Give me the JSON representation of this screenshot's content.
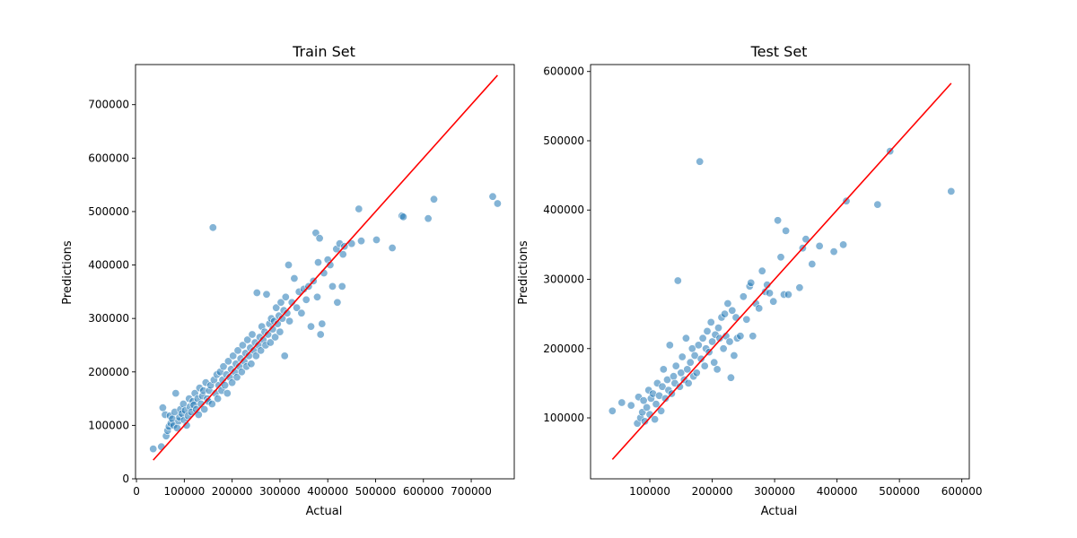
{
  "chart_data": [
    {
      "type": "scatter",
      "title": "Train Set",
      "xlabel": "Actual",
      "ylabel": "Predictions",
      "xlim": [
        -2000,
        790000
      ],
      "ylim": [
        0,
        775000
      ],
      "xticks": [
        0,
        100000,
        200000,
        300000,
        400000,
        500000,
        600000,
        700000
      ],
      "yticks": [
        0,
        100000,
        200000,
        300000,
        400000,
        500000,
        600000,
        700000
      ],
      "point_color": "#1f77b4",
      "line_color": "#ff0000",
      "reference_line": [
        [
          35000,
          35000
        ],
        [
          755000,
          755000
        ]
      ],
      "points": [
        [
          35000,
          56000
        ],
        [
          52000,
          60000
        ],
        [
          55000,
          133000
        ],
        [
          60000,
          120000
        ],
        [
          62000,
          80000
        ],
        [
          65000,
          90000
        ],
        [
          68000,
          98000
        ],
        [
          70000,
          118000
        ],
        [
          72000,
          104000
        ],
        [
          75000,
          112000
        ],
        [
          78000,
          100000
        ],
        [
          80000,
          125000
        ],
        [
          82000,
          160000
        ],
        [
          85000,
          95000
        ],
        [
          88000,
          108000
        ],
        [
          90000,
          115000
        ],
        [
          92000,
          130000
        ],
        [
          95000,
          122000
        ],
        [
          98000,
          140000
        ],
        [
          100000,
          110000
        ],
        [
          102000,
          128000
        ],
        [
          105000,
          100000
        ],
        [
          108000,
          118000
        ],
        [
          110000,
          150000
        ],
        [
          112000,
          135000
        ],
        [
          115000,
          125000
        ],
        [
          118000,
          145000
        ],
        [
          120000,
          138000
        ],
        [
          122000,
          160000
        ],
        [
          125000,
          130000
        ],
        [
          128000,
          150000
        ],
        [
          130000,
          120000
        ],
        [
          132000,
          170000
        ],
        [
          135000,
          140000
        ],
        [
          138000,
          155000
        ],
        [
          140000,
          165000
        ],
        [
          142000,
          130000
        ],
        [
          145000,
          180000
        ],
        [
          148000,
          150000
        ],
        [
          150000,
          145000
        ],
        [
          152000,
          165000
        ],
        [
          155000,
          175000
        ],
        [
          158000,
          140000
        ],
        [
          160000,
          470000
        ],
        [
          162000,
          185000
        ],
        [
          165000,
          160000
        ],
        [
          168000,
          195000
        ],
        [
          170000,
          150000
        ],
        [
          172000,
          175000
        ],
        [
          175000,
          200000
        ],
        [
          178000,
          165000
        ],
        [
          180000,
          185000
        ],
        [
          182000,
          210000
        ],
        [
          185000,
          175000
        ],
        [
          188000,
          195000
        ],
        [
          190000,
          160000
        ],
        [
          192000,
          220000
        ],
        [
          195000,
          190000
        ],
        [
          198000,
          205000
        ],
        [
          200000,
          180000
        ],
        [
          202000,
          230000
        ],
        [
          205000,
          200000
        ],
        [
          208000,
          215000
        ],
        [
          210000,
          190000
        ],
        [
          212000,
          240000
        ],
        [
          215000,
          210000
        ],
        [
          218000,
          225000
        ],
        [
          220000,
          200000
        ],
        [
          222000,
          250000
        ],
        [
          225000,
          220000
        ],
        [
          228000,
          235000
        ],
        [
          230000,
          210000
        ],
        [
          232000,
          260000
        ],
        [
          235000,
          230000
        ],
        [
          238000,
          245000
        ],
        [
          240000,
          215000
        ],
        [
          242000,
          270000
        ],
        [
          245000,
          240000
        ],
        [
          248000,
          255000
        ],
        [
          250000,
          230000
        ],
        [
          252000,
          348000
        ],
        [
          255000,
          250000
        ],
        [
          258000,
          265000
        ],
        [
          260000,
          240000
        ],
        [
          262000,
          285000
        ],
        [
          265000,
          260000
        ],
        [
          268000,
          275000
        ],
        [
          270000,
          250000
        ],
        [
          272000,
          345000
        ],
        [
          275000,
          270000
        ],
        [
          278000,
          290000
        ],
        [
          280000,
          255000
        ],
        [
          282000,
          300000
        ],
        [
          285000,
          280000
        ],
        [
          288000,
          295000
        ],
        [
          290000,
          265000
        ],
        [
          292000,
          320000
        ],
        [
          295000,
          290000
        ],
        [
          298000,
          305000
        ],
        [
          300000,
          275000
        ],
        [
          302000,
          330000
        ],
        [
          305000,
          300000
        ],
        [
          308000,
          315000
        ],
        [
          310000,
          230000
        ],
        [
          312000,
          340000
        ],
        [
          315000,
          310000
        ],
        [
          318000,
          400000
        ],
        [
          320000,
          295000
        ],
        [
          325000,
          330000
        ],
        [
          330000,
          375000
        ],
        [
          335000,
          320000
        ],
        [
          340000,
          350000
        ],
        [
          345000,
          310000
        ],
        [
          350000,
          355000
        ],
        [
          355000,
          335000
        ],
        [
          360000,
          360000
        ],
        [
          365000,
          285000
        ],
        [
          370000,
          370000
        ],
        [
          375000,
          460000
        ],
        [
          378000,
          340000
        ],
        [
          380000,
          405000
        ],
        [
          383000,
          450000
        ],
        [
          385000,
          270000
        ],
        [
          388000,
          290000
        ],
        [
          392000,
          385000
        ],
        [
          400000,
          410000
        ],
        [
          405000,
          400000
        ],
        [
          410000,
          360000
        ],
        [
          418000,
          430000
        ],
        [
          420000,
          330000
        ],
        [
          425000,
          440000
        ],
        [
          430000,
          360000
        ],
        [
          432000,
          420000
        ],
        [
          435000,
          435000
        ],
        [
          450000,
          440000
        ],
        [
          465000,
          505000
        ],
        [
          470000,
          445000
        ],
        [
          502000,
          447000
        ],
        [
          535000,
          432000
        ],
        [
          555000,
          492000
        ],
        [
          558000,
          490000
        ],
        [
          610000,
          487000
        ],
        [
          622000,
          523000
        ],
        [
          745000,
          528000
        ],
        [
          755000,
          515000
        ]
      ]
    },
    {
      "type": "scatter",
      "title": "Test Set",
      "xlabel": "Actual",
      "ylabel": "Predictions",
      "xlim": [
        5000,
        612000
      ],
      "ylim": [
        12000,
        610000
      ],
      "xticks": [
        100000,
        200000,
        300000,
        400000,
        500000,
        600000
      ],
      "yticks": [
        100000,
        200000,
        300000,
        400000,
        500000,
        600000
      ],
      "point_color": "#1f77b4",
      "line_color": "#ff0000",
      "reference_line": [
        [
          40000,
          40000
        ],
        [
          583000,
          583000
        ]
      ],
      "points": [
        [
          40000,
          110000
        ],
        [
          55000,
          122000
        ],
        [
          70000,
          118000
        ],
        [
          80000,
          92000
        ],
        [
          82000,
          130000
        ],
        [
          85000,
          100000
        ],
        [
          88000,
          108000
        ],
        [
          90000,
          125000
        ],
        [
          92000,
          95000
        ],
        [
          95000,
          115000
        ],
        [
          98000,
          140000
        ],
        [
          100000,
          105000
        ],
        [
          102000,
          128000
        ],
        [
          105000,
          135000
        ],
        [
          108000,
          98000
        ],
        [
          110000,
          120000
        ],
        [
          112000,
          150000
        ],
        [
          115000,
          132000
        ],
        [
          118000,
          110000
        ],
        [
          120000,
          145000
        ],
        [
          122000,
          170000
        ],
        [
          125000,
          128000
        ],
        [
          128000,
          155000
        ],
        [
          130000,
          140000
        ],
        [
          132000,
          205000
        ],
        [
          135000,
          135000
        ],
        [
          138000,
          160000
        ],
        [
          140000,
          150000
        ],
        [
          142000,
          175000
        ],
        [
          145000,
          298000
        ],
        [
          148000,
          145000
        ],
        [
          150000,
          165000
        ],
        [
          152000,
          188000
        ],
        [
          155000,
          155000
        ],
        [
          158000,
          215000
        ],
        [
          160000,
          170000
        ],
        [
          162000,
          150000
        ],
        [
          165000,
          180000
        ],
        [
          168000,
          200000
        ],
        [
          170000,
          160000
        ],
        [
          172000,
          190000
        ],
        [
          175000,
          165000
        ],
        [
          178000,
          205000
        ],
        [
          180000,
          470000
        ],
        [
          182000,
          185000
        ],
        [
          185000,
          215000
        ],
        [
          188000,
          175000
        ],
        [
          190000,
          200000
        ],
        [
          192000,
          225000
        ],
        [
          195000,
          195000
        ],
        [
          198000,
          238000
        ],
        [
          200000,
          210000
        ],
        [
          203000,
          180000
        ],
        [
          205000,
          220000
        ],
        [
          208000,
          170000
        ],
        [
          210000,
          230000
        ],
        [
          212000,
          215000
        ],
        [
          215000,
          245000
        ],
        [
          218000,
          200000
        ],
        [
          220000,
          250000
        ],
        [
          222000,
          218000
        ],
        [
          225000,
          265000
        ],
        [
          228000,
          210000
        ],
        [
          230000,
          158000
        ],
        [
          232000,
          255000
        ],
        [
          235000,
          190000
        ],
        [
          238000,
          245000
        ],
        [
          240000,
          215000
        ],
        [
          245000,
          218000
        ],
        [
          250000,
          275000
        ],
        [
          255000,
          242000
        ],
        [
          260000,
          290000
        ],
        [
          262000,
          295000
        ],
        [
          265000,
          218000
        ],
        [
          270000,
          265000
        ],
        [
          275000,
          258000
        ],
        [
          280000,
          312000
        ],
        [
          285000,
          282000
        ],
        [
          288000,
          292000
        ],
        [
          292000,
          280000
        ],
        [
          298000,
          268000
        ],
        [
          305000,
          385000
        ],
        [
          310000,
          332000
        ],
        [
          315000,
          278000
        ],
        [
          318000,
          370000
        ],
        [
          322000,
          278000
        ],
        [
          340000,
          288000
        ],
        [
          345000,
          345000
        ],
        [
          350000,
          358000
        ],
        [
          360000,
          322000
        ],
        [
          372000,
          348000
        ],
        [
          395000,
          340000
        ],
        [
          410000,
          350000
        ],
        [
          415000,
          413000
        ],
        [
          465000,
          408000
        ],
        [
          485000,
          485000
        ],
        [
          583000,
          427000
        ]
      ]
    }
  ]
}
